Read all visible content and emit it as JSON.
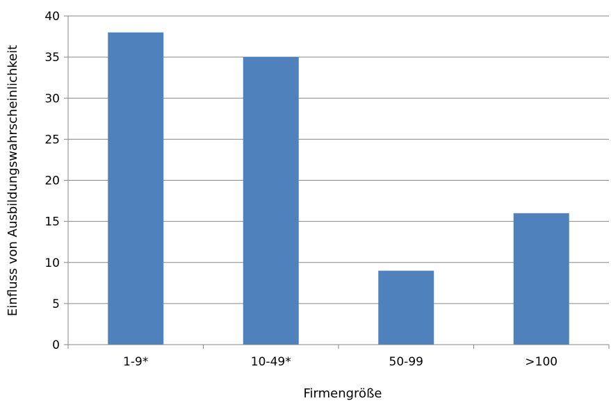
{
  "chart_data": {
    "type": "bar",
    "categories": [
      "1-9*",
      "10-49*",
      "50-99",
      ">100"
    ],
    "values": [
      38,
      35,
      9,
      16
    ],
    "title": "",
    "xlabel": "Firmengröße",
    "ylabel": "Einfluss von Ausbildungswahrscheinlichkeit",
    "ylim": [
      0,
      40
    ],
    "yticks": [
      0,
      5,
      10,
      15,
      20,
      25,
      30,
      35,
      40
    ],
    "grid": true,
    "legend": "none",
    "bar_color": "#4f81bd",
    "grid_color": "#868686"
  }
}
